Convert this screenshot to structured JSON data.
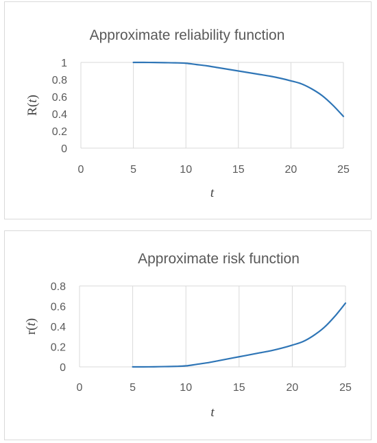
{
  "chart_data": [
    {
      "type": "line",
      "title": "Approximate reliability function",
      "xlabel": "t",
      "ylabel_parts": [
        "R(",
        "t",
        ")"
      ],
      "xlim": [
        0,
        25
      ],
      "ylim": [
        0,
        1
      ],
      "xticks": [
        0,
        5,
        10,
        15,
        20,
        25
      ],
      "xtick_labels": [
        "0",
        "5",
        "10",
        "15",
        "20",
        "25"
      ],
      "yticks": [
        0,
        0.2,
        0.4,
        0.6,
        0.8,
        1
      ],
      "ytick_labels": [
        "0",
        "0.2",
        "0.4",
        "0.6",
        "0.8",
        "1"
      ],
      "grid": "vertical",
      "color": "#2e75b6",
      "series": [
        {
          "x": [
            5,
            6,
            7,
            8,
            9,
            10,
            11,
            12,
            13,
            14,
            15,
            16,
            17,
            18,
            19,
            20,
            21,
            22,
            23,
            24,
            25
          ],
          "y": [
            1.0,
            1.0,
            0.999,
            0.997,
            0.995,
            0.99,
            0.975,
            0.96,
            0.94,
            0.92,
            0.9,
            0.88,
            0.86,
            0.84,
            0.815,
            0.785,
            0.75,
            0.69,
            0.61,
            0.5,
            0.37
          ]
        }
      ]
    },
    {
      "type": "line",
      "title": "Approximate risk function",
      "xlabel": "t",
      "ylabel_parts": [
        "r(",
        "t",
        ")"
      ],
      "xlim": [
        0,
        25
      ],
      "ylim": [
        0,
        0.8
      ],
      "xticks": [
        0,
        5,
        10,
        15,
        20,
        25
      ],
      "xtick_labels": [
        "0",
        "5",
        "10",
        "15",
        "20",
        "25"
      ],
      "yticks": [
        0,
        0.2,
        0.4,
        0.6,
        0.8
      ],
      "ytick_labels": [
        "0",
        "0.2",
        "0.4",
        "0.6",
        "0.8"
      ],
      "grid": "vertical",
      "color": "#2e75b6",
      "series": [
        {
          "x": [
            5,
            6,
            7,
            8,
            9,
            10,
            11,
            12,
            13,
            14,
            15,
            16,
            17,
            18,
            19,
            20,
            21,
            22,
            23,
            24,
            25
          ],
          "y": [
            0.0,
            0.0,
            0.001,
            0.003,
            0.005,
            0.01,
            0.025,
            0.04,
            0.06,
            0.08,
            0.1,
            0.12,
            0.14,
            0.16,
            0.185,
            0.215,
            0.25,
            0.31,
            0.39,
            0.5,
            0.63
          ]
        }
      ]
    }
  ]
}
